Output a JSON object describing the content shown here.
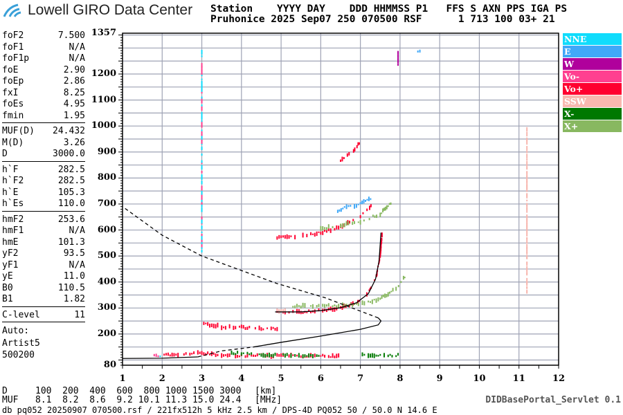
{
  "header": {
    "logo_text": "Lowell GIRO Data Center",
    "line1": "Station    YYYY DAY    DDD HHMMSS P1   FFS S AXN PPS IGA PS",
    "line2": "Pruhonice 2025 Sep07 250 070500 RSF      1 713 100 03+ 21"
  },
  "params": {
    "group1": [
      [
        "foF2",
        "7.500"
      ],
      [
        "foF1",
        "N/A"
      ],
      [
        "foF1p",
        "N/A"
      ],
      [
        "foE",
        "2.90"
      ],
      [
        "foEp",
        "2.86"
      ],
      [
        "fxI",
        "8.25"
      ],
      [
        "foEs",
        "4.95"
      ],
      [
        "fmin",
        "1.95"
      ]
    ],
    "group2": [
      [
        "MUF(D)",
        "24.432"
      ],
      [
        "M(D)",
        "3.26"
      ],
      [
        "D",
        "3000.0"
      ]
    ],
    "group3": [
      [
        "h`F",
        "282.5"
      ],
      [
        "h`F2",
        "282.5"
      ],
      [
        "h`E",
        "105.3"
      ],
      [
        "h`Es",
        "110.0"
      ]
    ],
    "group4": [
      [
        "hmF2",
        "253.6"
      ],
      [
        "hmF1",
        "N/A"
      ],
      [
        "hmE",
        "101.3"
      ],
      [
        "yF2",
        "93.5"
      ],
      [
        "yF1",
        "N/A"
      ],
      [
        "yE",
        "11.0"
      ],
      [
        "B0",
        "110.5"
      ],
      [
        "B1",
        "1.82"
      ]
    ],
    "group5": [
      [
        "C-level",
        "11"
      ]
    ],
    "auto": [
      "Auto:",
      "Artist5",
      "500200"
    ]
  },
  "legend": [
    {
      "label": "NNE",
      "color": "#10dcfc"
    },
    {
      "label": "E",
      "color": "#40a8f8"
    },
    {
      "label": "W",
      "color": "#b0009c"
    },
    {
      "label": "Vo-",
      "color": "#ff4090"
    },
    {
      "label": "Vo+",
      "color": "#ff0030"
    },
    {
      "label": "SSW",
      "color": "#f8b8b0"
    },
    {
      "label": "X-",
      "color": "#007800"
    },
    {
      "label": "X+",
      "color": "#88b860"
    }
  ],
  "distance_table": {
    "d_label": "D",
    "d_values": "100  200  400  600  800 1000 1500 3000",
    "d_unit": "[km]",
    "muf_label": "MUF",
    "muf_values": "8.1  8.2  8.6  9.2 10.1 11.3 15.0 24.4",
    "muf_unit": "[MHz]"
  },
  "footer": "db pq052 20250907 070500.rsf / 221fx512h 5 kHz 2.5 km / DPS-4D PQ052 50 / 50.0 N 14.6 E",
  "servlet": "DIDBasePortal_Servlet 0.1",
  "chart_data": {
    "type": "scatter",
    "xlim": [
      1,
      12
    ],
    "ylim": [
      80,
      1357
    ],
    "x_ticks": [
      "1",
      "2",
      "3",
      "4",
      "5",
      "6",
      "7",
      "8",
      "9",
      "10",
      "11",
      "12"
    ],
    "y_ticks": [
      "80",
      "200",
      "300",
      "400",
      "500",
      "600",
      "700",
      "800",
      "900",
      "1000",
      "1100",
      "1200",
      "1357"
    ],
    "grid": true,
    "legend_position": "right",
    "series": [
      {
        "name": "Vo+",
        "traces": [
          [
            [
              4.9,
              285
            ],
            [
              5.5,
              284
            ],
            [
              6.0,
              290
            ],
            [
              6.5,
              300
            ],
            [
              6.9,
              320
            ],
            [
              7.2,
              360
            ],
            [
              7.4,
              420
            ],
            [
              7.5,
              500
            ],
            [
              7.55,
              590
            ]
          ],
          [
            [
              2.0,
              118
            ],
            [
              2.5,
              120
            ],
            [
              3.0,
              127
            ],
            [
              3.5,
              118
            ],
            [
              4.0,
              117
            ],
            [
              5.0,
              116
            ],
            [
              6.0,
              115
            ],
            [
              6.5,
              115
            ]
          ],
          [
            [
              4.9,
              570
            ],
            [
              5.5,
              575
            ],
            [
              6.0,
              590
            ],
            [
              6.5,
              612
            ],
            [
              7.0,
              650
            ],
            [
              7.3,
              700
            ]
          ],
          [
            [
              3.0,
              240
            ],
            [
              3.5,
              228
            ],
            [
              4.5,
              222
            ],
            [
              5.0,
              220
            ]
          ],
          [
            [
              6.5,
              870
            ],
            [
              6.8,
              900
            ],
            [
              7.0,
              940
            ]
          ]
        ]
      },
      {
        "name": "X+",
        "traces": [
          [
            [
              5.3,
              307
            ],
            [
              6.0,
              308
            ],
            [
              6.6,
              311
            ],
            [
              7.0,
              315
            ],
            [
              7.5,
              335
            ],
            [
              7.9,
              375
            ],
            [
              8.15,
              425
            ]
          ],
          [
            [
              6.0,
              605
            ],
            [
              6.5,
              618
            ],
            [
              7.0,
              632
            ],
            [
              7.5,
              662
            ],
            [
              7.8,
              710
            ]
          ]
        ]
      },
      {
        "name": "X-",
        "traces": [
          [
            [
              3.7,
              128
            ],
            [
              4.5,
              119
            ],
            [
              5.5,
              118
            ],
            [
              6.0,
              118
            ]
          ],
          [
            [
              7.0,
              118
            ],
            [
              8.0,
              118
            ]
          ]
        ]
      },
      {
        "name": "E",
        "traces": [
          [
            [
              6.3,
              660
            ],
            [
              6.6,
              685
            ],
            [
              7.0,
              700
            ],
            [
              7.3,
              722
            ]
          ],
          [
            [
              8.45,
              1290
            ],
            [
              8.55,
              1290
            ]
          ]
        ]
      },
      {
        "name": "W",
        "traces": [
          [
            [
              7.95,
              1235
            ],
            [
              7.95,
              1290
            ]
          ]
        ]
      },
      {
        "name": "SSW",
        "traces": [
          [
            [
              11.2,
              350
            ],
            [
              11.2,
              1000
            ]
          ],
          [
            [
              4.9,
              290
            ],
            [
              5.3,
              288
            ]
          ]
        ]
      },
      {
        "name": "NNE",
        "traces": [
          [
            [
              3.0,
              520
            ],
            [
              3.0,
              1290
            ]
          ],
          [
            [
              1.8,
              118
            ],
            [
              2.0,
              117
            ]
          ]
        ]
      }
    ],
    "curves": [
      {
        "style": "solid",
        "points": [
          [
            4.85,
            285
          ],
          [
            5.5,
            285
          ],
          [
            6.0,
            290
          ],
          [
            6.5,
            301
          ],
          [
            6.9,
            320
          ],
          [
            7.2,
            355
          ],
          [
            7.38,
            410
          ],
          [
            7.47,
            480
          ],
          [
            7.52,
            590
          ]
        ]
      },
      {
        "style": "solid",
        "points": [
          [
            1.0,
            106
          ],
          [
            2.0,
            107
          ],
          [
            2.9,
            112
          ]
        ]
      },
      {
        "style": "dashed",
        "points": [
          [
            2.9,
            112
          ],
          [
            3.5,
            135
          ],
          [
            4.3,
            150
          ]
        ]
      },
      {
        "style": "solid",
        "points": [
          [
            4.3,
            150
          ],
          [
            5.0,
            168
          ],
          [
            6.0,
            192
          ],
          [
            7.0,
            218
          ],
          [
            7.45,
            235
          ],
          [
            7.52,
            250
          ],
          [
            7.45,
            262
          ]
        ]
      },
      {
        "style": "dashed",
        "points": [
          [
            7.45,
            262
          ],
          [
            7.0,
            288
          ],
          [
            6.1,
            340
          ],
          [
            4.9,
            394
          ],
          [
            3.0,
            500
          ],
          [
            2.0,
            580
          ],
          [
            1.0,
            690
          ]
        ]
      }
    ]
  }
}
